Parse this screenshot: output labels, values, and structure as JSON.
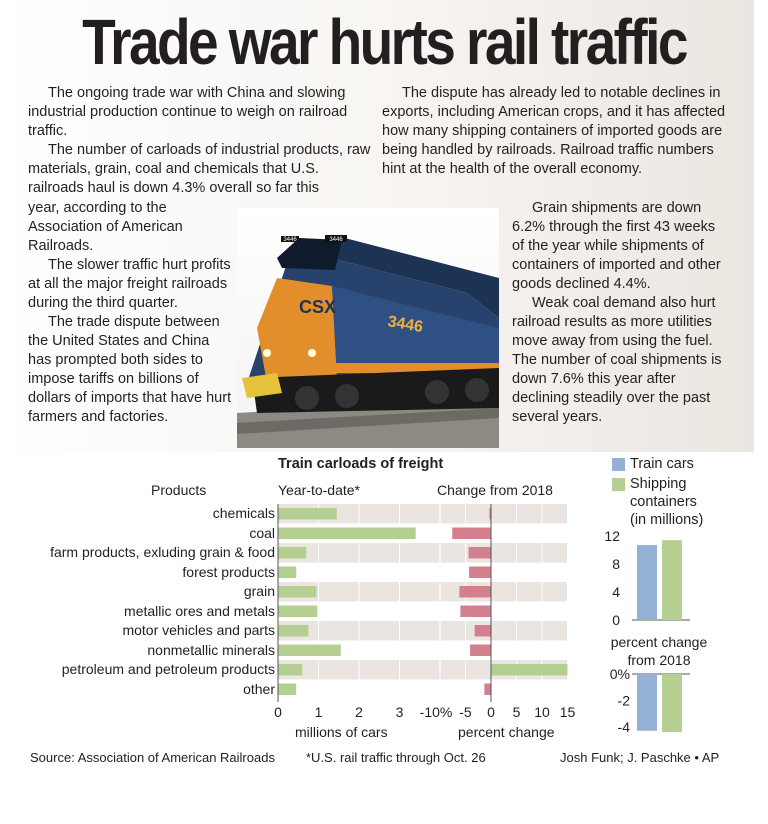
{
  "headline": "Trade war hurts rail traffic",
  "story": {
    "col1": [
      "The ongoing trade war with China and slowing industrial production continue to weigh on railroad traffic.",
      "The number of carloads of industrial products, raw materials, grain, coal and chemicals that U.S. railroads haul is down 4.3% overall so far this year, according to the Association of American Railroads.",
      "The slower traffic hurt profits at all the major freight railroads during the third quarter.",
      "The trade dispute between the United States and China has prompted both sides to impose tariffs on billions of dollars of imports that have hurt farmers and factories."
    ],
    "col2": [
      "The dispute has already led to notable declines in exports, including American crops, and it has affected how many shipping containers of imported goods are being handled by railroads. Railroad traffic numbers hint at the health of the overall economy.",
      "Grain shipments are down 6.2% through the first 43 weeks of the year while shipments of containers of imported and other goods declined 4.4%.",
      "Weak coal demand also hurt railroad results as more utilities move away from using the fuel. The number of coal shipments is down 7.6% this year after declining steadily over the past several years."
    ]
  },
  "photo": {
    "loco_number": "3446",
    "brand": "CSX"
  },
  "colors": {
    "green": "#b5cf93",
    "red": "#d37f8e",
    "blue": "#94b0d4",
    "stripe": "#ebe5e2"
  },
  "chart_data": [
    {
      "type": "bar",
      "orientation": "horizontal",
      "title": "Train carloads of freight",
      "category_header": "Products",
      "subtitle": "Year-to-date*",
      "xlabel": "millions of cars",
      "xlim": [
        0,
        3.5
      ],
      "xticks": [
        "0",
        "1",
        "2",
        "3"
      ],
      "categories": [
        "chemicals",
        "coal",
        "farm products, exluding grain & food",
        "forest products",
        "grain",
        "metallic ores and metals",
        "motor vehicles and parts",
        "nonmetallic minerals",
        "petroleum and petroleum products",
        "other"
      ],
      "values": [
        1.45,
        3.4,
        0.7,
        0.45,
        0.95,
        0.97,
        0.75,
        1.55,
        0.6,
        0.45
      ]
    },
    {
      "type": "bar",
      "orientation": "horizontal",
      "subtitle": "Change from 2018",
      "xlabel": "percent change",
      "xlim": [
        -12,
        15
      ],
      "xticks": [
        "-10%",
        "-5",
        "0",
        "5",
        "10",
        "15"
      ],
      "categories": [
        "chemicals",
        "coal",
        "farm products, exluding grain & food",
        "forest products",
        "grain",
        "metallic ores and metals",
        "motor vehicles and parts",
        "nonmetallic minerals",
        "petroleum and petroleum products",
        "other"
      ],
      "values": [
        -0.3,
        -7.6,
        -4.4,
        -4.3,
        -6.2,
        -6.0,
        -3.2,
        -4.1,
        15,
        -1.3
      ]
    },
    {
      "type": "bar",
      "legend": [
        "Train cars",
        "Shipping containers (in millions)"
      ],
      "legend_placement": "top",
      "series": [
        {
          "name": "Train cars",
          "values": [
            10.7
          ]
        },
        {
          "name": "Shipping containers (in millions)",
          "values": [
            11.4
          ]
        }
      ],
      "ylim": [
        0,
        12
      ],
      "yticks": [
        "12",
        "8",
        "4",
        "0"
      ]
    },
    {
      "type": "bar",
      "title": "percent change from 2018",
      "series": [
        {
          "name": "Train cars",
          "values": [
            -4.3
          ]
        },
        {
          "name": "Shipping containers (in millions)",
          "values": [
            -4.4
          ]
        }
      ],
      "ylim": [
        -4,
        0
      ],
      "yticks": [
        "0%",
        "-2",
        "-4"
      ]
    }
  ],
  "legend_lines": {
    "train": "Train cars",
    "ship1": "Shipping",
    "ship2": "containers",
    "ship3": "(in millions)"
  },
  "footer": {
    "source": "Source: Association of American Railroads",
    "note": "*U.S. rail traffic through Oct. 26",
    "credit": "Josh Funk; J. Paschke • AP"
  }
}
